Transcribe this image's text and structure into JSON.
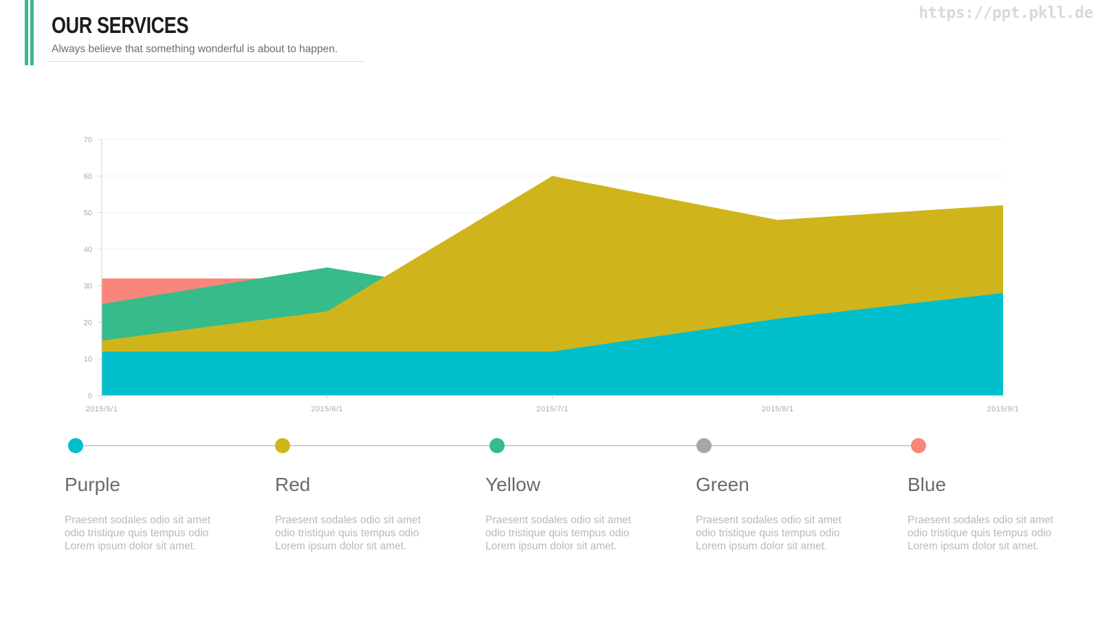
{
  "header": {
    "title": "OUR SERVICES",
    "subtitle": "Always believe that something wonderful is about to happen."
  },
  "watermark": "https://ppt.pkll.de",
  "colors": {
    "accent": "#3ab98a",
    "cyan": "#00bfca",
    "yellow": "#cfb51b",
    "green": "#37bb8b",
    "red": "#fa857a",
    "gray": "#a6a6a6"
  },
  "chart_data": {
    "type": "area",
    "x": [
      "2015/5/1",
      "2015/6/1",
      "2015/7/1",
      "2015/8/1",
      "2015/9/1"
    ],
    "y_ticks": [
      0,
      10,
      20,
      30,
      40,
      50,
      60,
      70
    ],
    "ylim": [
      0,
      70
    ],
    "grid": true,
    "legend": "none",
    "series": [
      {
        "color": "#fa857a",
        "values": [
          32,
          32,
          32,
          32,
          32
        ]
      },
      {
        "color": "#37bb8b",
        "values": [
          25,
          35,
          25,
          20,
          20
        ]
      },
      {
        "color": "#cfb51b",
        "values": [
          15,
          23,
          60,
          48,
          52
        ]
      },
      {
        "color": "#00bfca",
        "values": [
          12,
          12,
          12,
          21,
          28
        ]
      }
    ]
  },
  "timeline": {
    "items": [
      {
        "title": "Purple",
        "color": "#00bfca",
        "text": "Praesent sodales odio sit amet odio tristique quis tempus odio Lorem ipsum dolor sit amet."
      },
      {
        "title": "Red",
        "color": "#cfb51b",
        "text": "Praesent sodales odio sit amet odio tristique quis tempus odio Lorem ipsum dolor sit amet."
      },
      {
        "title": "Yellow",
        "color": "#37bb8b",
        "text": "Praesent sodales odio sit amet odio tristique quis tempus odio Lorem ipsum dolor sit amet."
      },
      {
        "title": "Green",
        "color": "#a6a6a6",
        "text": "Praesent sodales odio sit amet odio tristique quis tempus odio Lorem ipsum dolor sit amet."
      },
      {
        "title": "Blue",
        "color": "#fa857a",
        "text": "Praesent sodales odio sit amet odio tristique quis tempus odio Lorem ipsum dolor sit amet."
      }
    ]
  }
}
